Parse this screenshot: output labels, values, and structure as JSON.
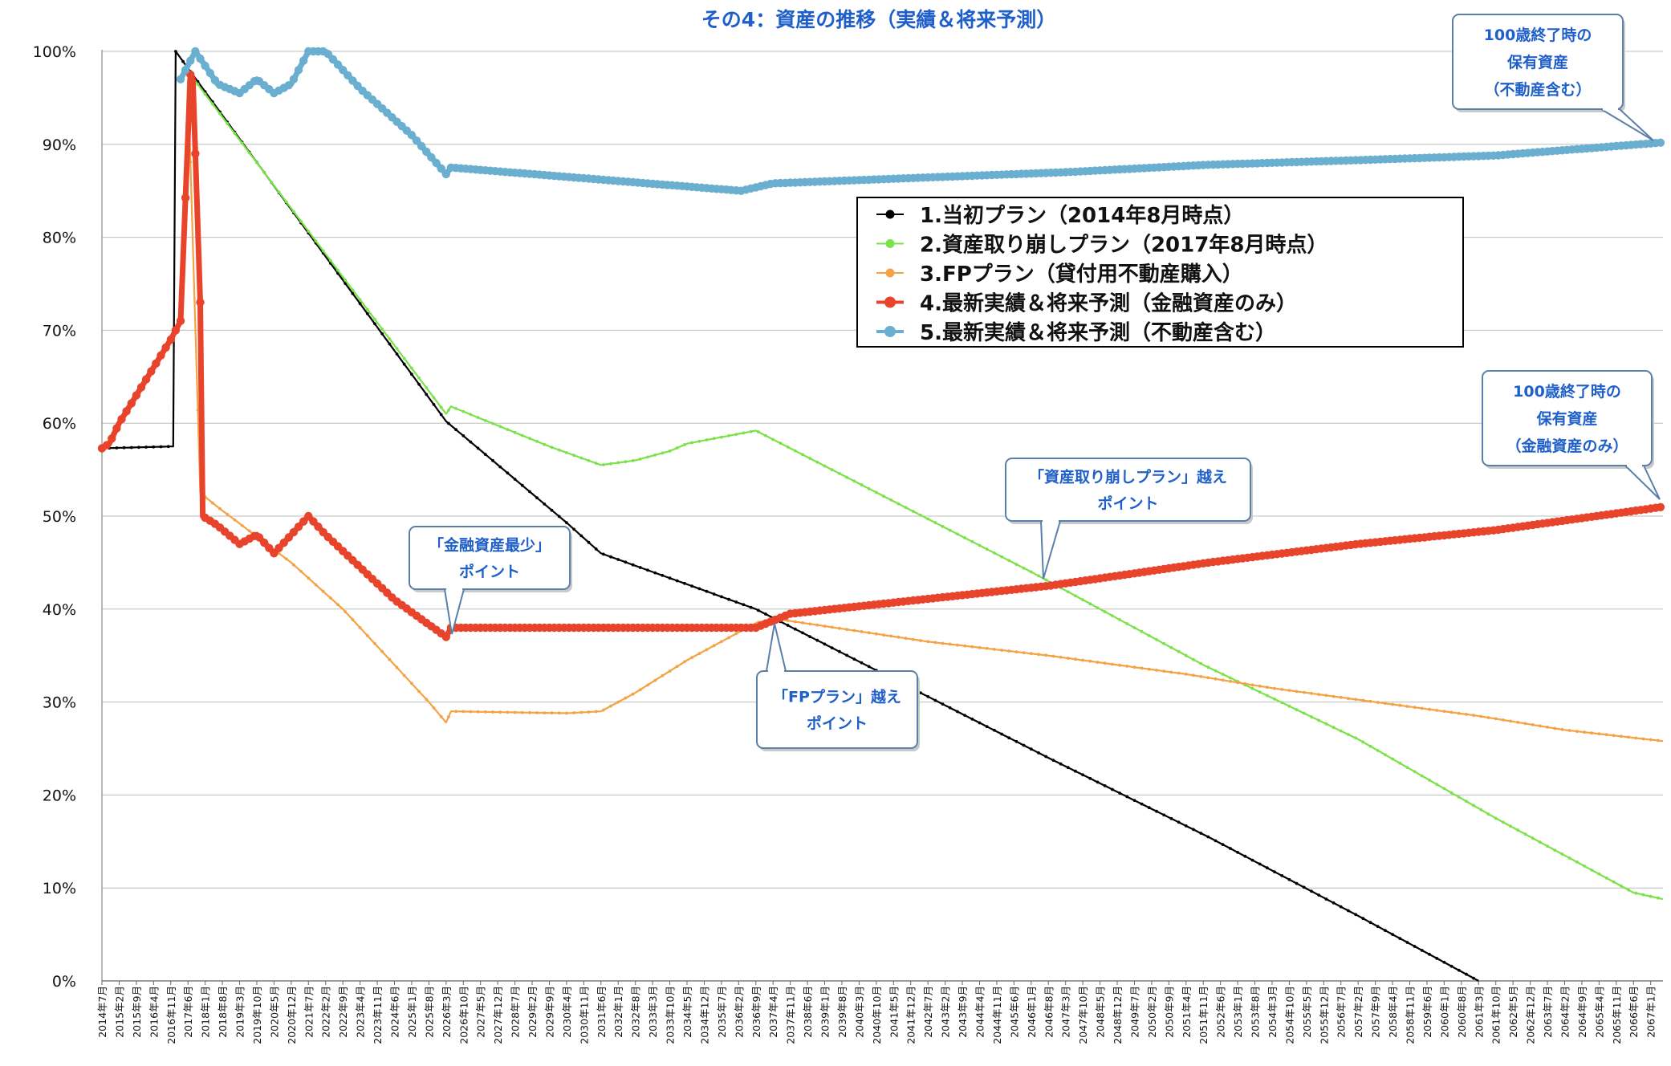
{
  "chart_data": {
    "type": "line",
    "title": "その4：資産の推移（実績＆将来予測）",
    "ylim": [
      0,
      100
    ],
    "y_ticks": [
      "100%",
      "90%",
      "80%",
      "70%",
      "60%",
      "50%",
      "40%",
      "30%",
      "20%",
      "10%",
      "0%"
    ],
    "x_start": "2014-07",
    "x_end": "2067-06",
    "x_tick_labels": [
      "2014年7月",
      "2015年2月",
      "2015年9月",
      "2016年4月",
      "2016年11月",
      "2017年6月",
      "2018年1月",
      "2018年8月",
      "2019年3月",
      "2019年10月",
      "2020年5月",
      "2020年12月",
      "2021年7月",
      "2022年2月",
      "2022年9月",
      "2023年4月",
      "2023年11月",
      "2024年6月",
      "2025年1月",
      "2025年8月",
      "2026年3月",
      "2026年10月",
      "2027年5月",
      "2027年12月",
      "2028年7月",
      "2029年2月",
      "2029年9月",
      "2030年4月",
      "2030年11月",
      "2031年6月",
      "2032年1月",
      "2032年8月",
      "2033年3月",
      "2033年10月",
      "2034年5月",
      "2034年12月",
      "2035年7月",
      "2036年2月",
      "2036年9月",
      "2037年4月",
      "2037年11月",
      "2038年6月",
      "2039年1月",
      "2039年8月",
      "2040年3月",
      "2040年10月",
      "2041年5月",
      "2041年12月",
      "2042年7月",
      "2043年2月",
      "2043年9月",
      "2044年4月",
      "2044年11月",
      "2045年6月",
      "2046年1月",
      "2046年8月",
      "2047年3月",
      "2047年10月",
      "2048年5月",
      "2048年12月",
      "2049年7月",
      "2050年2月",
      "2050年9月",
      "2051年4月",
      "2051年11月",
      "2052年6月",
      "2053年1月",
      "2053年8月",
      "2054年3月",
      "2054年10月",
      "2055年5月",
      "2055年12月",
      "2056年7月",
      "2057年2月",
      "2057年9月",
      "2058年4月",
      "2058年11月",
      "2059年6月",
      "2060年1月",
      "2060年8月",
      "2061年3月",
      "2061年10月",
      "2062年5月",
      "2062年12月",
      "2063年7月",
      "2064年2月",
      "2064年9月",
      "2065年4月",
      "2065年11月",
      "2066年6月",
      "2067年1月"
    ],
    "legend_position": "top-center",
    "series": [
      {
        "name": "1.当初プラン（2014年8月時点）",
        "color": "#000000",
        "marker": "small",
        "points": [
          [
            "2014-07",
            57.3
          ],
          [
            "2016-12",
            57.5
          ],
          [
            "2017-01",
            100
          ],
          [
            "2026-03",
            60.2
          ],
          [
            "2030-04",
            49.3
          ],
          [
            "2031-06",
            46
          ],
          [
            "2036-09",
            40
          ],
          [
            "2046-08",
            24
          ],
          [
            "2052-01",
            15.5
          ],
          [
            "2057-02",
            7
          ],
          [
            "2061-03",
            0
          ]
        ]
      },
      {
        "name": "2.資産取り崩しプラン（2017年8月時点）",
        "color": "#7be24a",
        "marker": "small",
        "points": [
          [
            "2017-07",
            97.5
          ],
          [
            "2026-03",
            61
          ],
          [
            "2026-05",
            61.8
          ],
          [
            "2027-05",
            60.5
          ],
          [
            "2029-09",
            57.5
          ],
          [
            "2031-06",
            55.5
          ],
          [
            "2032-08",
            56
          ],
          [
            "2033-10",
            57
          ],
          [
            "2034-05",
            57.8
          ],
          [
            "2036-09",
            59.2
          ],
          [
            "2046-01",
            44
          ],
          [
            "2051-11",
            34
          ],
          [
            "2057-02",
            26
          ],
          [
            "2061-10",
            17.5
          ],
          [
            "2066-06",
            9.5
          ],
          [
            "2067-06",
            8.8
          ]
        ]
      },
      {
        "name": "3.FPプラン（貸付用不動産購入）",
        "color": "#f4a244",
        "marker": "small",
        "points": [
          [
            "2014-07",
            57.3
          ],
          [
            "2014-10",
            57.8
          ],
          [
            "2015-02",
            60
          ],
          [
            "2015-09",
            63
          ],
          [
            "2016-04",
            66
          ],
          [
            "2016-11",
            69
          ],
          [
            "2017-03",
            71
          ],
          [
            "2017-06",
            97
          ],
          [
            "2017-11",
            52.5
          ],
          [
            "2018-06",
            51
          ],
          [
            "2020-12",
            45
          ],
          [
            "2022-09",
            40
          ],
          [
            "2025-08",
            30
          ],
          [
            "2026-03",
            27.8
          ],
          [
            "2026-05",
            29
          ],
          [
            "2030-04",
            28.8
          ],
          [
            "2031-06",
            29
          ],
          [
            "2032-08",
            31
          ],
          [
            "2034-05",
            34.5
          ],
          [
            "2036-09",
            38.5
          ],
          [
            "2037-04",
            39
          ],
          [
            "2042-07",
            36.5
          ],
          [
            "2046-08",
            35
          ],
          [
            "2051-04",
            33
          ],
          [
            "2054-03",
            31.5
          ],
          [
            "2057-09",
            30
          ],
          [
            "2061-03",
            28.5
          ],
          [
            "2064-02",
            27
          ],
          [
            "2067-06",
            25.8
          ]
        ]
      },
      {
        "name": "4.最新実績＆将来予測（金融資産のみ）",
        "color": "#e8432b",
        "marker": "large",
        "points": [
          [
            "2014-07",
            57.3
          ],
          [
            "2014-10",
            57.8
          ],
          [
            "2015-02",
            60
          ],
          [
            "2015-09",
            63
          ],
          [
            "2016-04",
            66
          ],
          [
            "2016-11",
            69
          ],
          [
            "2017-03",
            71
          ],
          [
            "2017-07",
            97.5
          ],
          [
            "2017-08",
            97
          ],
          [
            "2017-11",
            73
          ],
          [
            "2017-12",
            50
          ],
          [
            "2018-06",
            49
          ],
          [
            "2019-03",
            47
          ],
          [
            "2019-10",
            48
          ],
          [
            "2020-05",
            46
          ],
          [
            "2020-12",
            48
          ],
          [
            "2021-07",
            50
          ],
          [
            "2022-02",
            48
          ],
          [
            "2024-06",
            41
          ],
          [
            "2026-03",
            37
          ],
          [
            "2026-05",
            38
          ],
          [
            "2030-04",
            38
          ],
          [
            "2036-09",
            38
          ],
          [
            "2037-11",
            39.5
          ],
          [
            "2046-08",
            42.5
          ],
          [
            "2052-01",
            45
          ],
          [
            "2057-02",
            47
          ],
          [
            "2061-10",
            48.5
          ],
          [
            "2067-06",
            51
          ]
        ]
      },
      {
        "name": "5.最新実績＆将来予測（不動産含む）",
        "color": "#6aaed0",
        "marker": "large",
        "points": [
          [
            "2017-03",
            97
          ],
          [
            "2017-09",
            100
          ],
          [
            "2018-06",
            96.5
          ],
          [
            "2019-03",
            95.5
          ],
          [
            "2019-10",
            97
          ],
          [
            "2020-05",
            95.5
          ],
          [
            "2020-12",
            96.5
          ],
          [
            "2021-07",
            100
          ],
          [
            "2022-02",
            100
          ],
          [
            "2023-04",
            96
          ],
          [
            "2025-01",
            91
          ],
          [
            "2026-03",
            86.8
          ],
          [
            "2026-05",
            87.5
          ],
          [
            "2030-04",
            86.5
          ],
          [
            "2036-03",
            85
          ],
          [
            "2037-04",
            85.8
          ],
          [
            "2047-03",
            87
          ],
          [
            "2052-01",
            87.8
          ],
          [
            "2057-02",
            88.3
          ],
          [
            "2061-10",
            88.8
          ],
          [
            "2067-06",
            90.2
          ]
        ]
      }
    ],
    "annotations": [
      {
        "lines": [
          "100歳終了時の",
          "保有資産",
          "（不動産含む）"
        ]
      },
      {
        "lines": [
          "100歳終了時の",
          "保有資産",
          "（金融資産のみ）"
        ]
      },
      {
        "lines": [
          "「資産取り崩しプラン」越え",
          "ポイント"
        ]
      },
      {
        "lines": [
          "「金融資産最少」",
          "ポイント"
        ]
      },
      {
        "lines": [
          "「FPプラン」越え",
          "ポイント"
        ]
      }
    ]
  }
}
